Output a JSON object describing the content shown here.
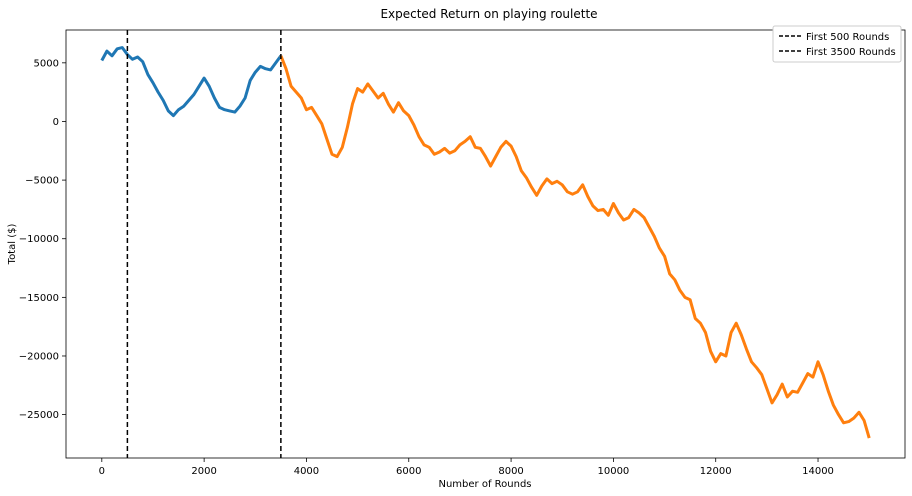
{
  "chart_data": {
    "type": "line",
    "title": "Expected Return on playing roulette",
    "xlabel": "Number of Rounds",
    "ylabel": "Total ($)",
    "xlim": [
      -700,
      15700
    ],
    "ylim": [
      -28700,
      7800
    ],
    "xticks": [
      0,
      2000,
      4000,
      6000,
      8000,
      10000,
      12000,
      14000
    ],
    "yticks": [
      5000,
      0,
      -5000,
      -10000,
      -15000,
      -20000,
      -25000
    ],
    "ytick_labels": [
      "5000",
      "0",
      "−5000",
      "−10000",
      "−15000",
      "−20000",
      "−25000"
    ],
    "grid": false,
    "legend_position": "top-right",
    "vlines": [
      {
        "x": 500,
        "label": "First 500 Rounds",
        "style": "dashed",
        "color": "#000000"
      },
      {
        "x": 3500,
        "label": "First 3500 Rounds",
        "style": "dashed",
        "color": "#000000"
      }
    ],
    "series": [
      {
        "color": "#1f77b4",
        "x": [
          0,
          100,
          200,
          300,
          400,
          500,
          600,
          700,
          800,
          900,
          1000,
          1100,
          1200,
          1300,
          1400,
          1500,
          1600,
          1700,
          1800,
          1900,
          2000,
          2100,
          2200,
          2300,
          2400,
          2500,
          2600,
          2700,
          2800,
          2900,
          3000,
          3100,
          3200,
          3300,
          3400,
          3500
        ],
        "y": [
          5200,
          6000,
          5600,
          6200,
          6300,
          5700,
          5300,
          5500,
          5100,
          4000,
          3300,
          2500,
          1800,
          900,
          500,
          1000,
          1300,
          1800,
          2300,
          3000,
          3700,
          3000,
          2000,
          1200,
          1000,
          900,
          800,
          1300,
          2000,
          3500,
          4200,
          4700,
          4500,
          4400,
          5000,
          5600
        ]
      },
      {
        "color": "#ff7f0e",
        "x": [
          3500,
          3600,
          3700,
          3800,
          3900,
          4000,
          4100,
          4200,
          4300,
          4400,
          4500,
          4600,
          4700,
          4800,
          4900,
          5000,
          5100,
          5200,
          5300,
          5400,
          5500,
          5600,
          5700,
          5800,
          5900,
          6000,
          6100,
          6200,
          6300,
          6400,
          6500,
          6600,
          6700,
          6800,
          6900,
          7000,
          7100,
          7200,
          7300,
          7400,
          7500,
          7600,
          7700,
          7800,
          7900,
          8000,
          8100,
          8200,
          8300,
          8400,
          8500,
          8600,
          8700,
          8800,
          8900,
          9000,
          9100,
          9200,
          9300,
          9400,
          9500,
          9600,
          9700,
          9800,
          9900,
          10000,
          10100,
          10200,
          10300,
          10400,
          10500,
          10600,
          10700,
          10800,
          10900,
          11000,
          11100,
          11200,
          11300,
          11400,
          11500,
          11600,
          11700,
          11800,
          11900,
          12000,
          12100,
          12200,
          12300,
          12400,
          12500,
          12600,
          12700,
          12800,
          12900,
          13000,
          13100,
          13200,
          13300,
          13400,
          13500,
          13600,
          13700,
          13800,
          13900,
          14000,
          14100,
          14200,
          14300,
          14400,
          14500,
          14600,
          14700,
          14800,
          14900,
          15000
        ],
        "y": [
          5600,
          4500,
          3000,
          2500,
          2000,
          1000,
          1200,
          500,
          -200,
          -1500,
          -2800,
          -3000,
          -2200,
          -500,
          1500,
          2800,
          2500,
          3200,
          2600,
          2000,
          2400,
          1500,
          800,
          1600,
          900,
          500,
          -300,
          -1300,
          -2000,
          -2200,
          -2800,
          -2600,
          -2300,
          -2700,
          -2500,
          -2000,
          -1700,
          -1300,
          -2200,
          -2300,
          -3000,
          -3800,
          -3000,
          -2200,
          -1700,
          -2100,
          -3000,
          -4200,
          -4800,
          -5600,
          -6300,
          -5500,
          -4900,
          -5300,
          -5100,
          -5400,
          -6000,
          -6200,
          -6000,
          -5400,
          -6400,
          -7200,
          -7600,
          -7500,
          -8000,
          -7000,
          -7800,
          -8400,
          -8200,
          -7500,
          -7800,
          -8200,
          -9000,
          -9800,
          -10800,
          -11500,
          -13000,
          -13500,
          -14400,
          -15000,
          -15200,
          -16800,
          -17200,
          -18000,
          -19600,
          -20500,
          -19800,
          -20000,
          -18000,
          -17200,
          -18200,
          -19400,
          -20500,
          -21000,
          -21600,
          -22800,
          -24000,
          -23300,
          -22400,
          -23500,
          -23000,
          -23100,
          -22300,
          -21500,
          -21800,
          -20500,
          -21600,
          -23000,
          -24200,
          -25000,
          -25700,
          -25600,
          -25300,
          -24800,
          -25500,
          -27000
        ]
      }
    ]
  }
}
